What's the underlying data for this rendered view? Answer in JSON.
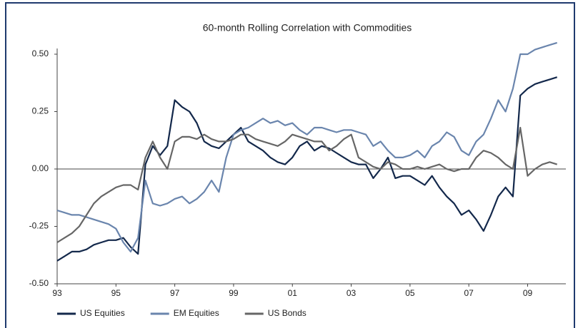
{
  "chart_data": {
    "type": "line",
    "title": "60-month Rolling Correlation with Commodities",
    "x": [
      1993,
      1993.25,
      1993.5,
      1993.75,
      1994,
      1994.25,
      1994.5,
      1994.75,
      1995,
      1995.25,
      1995.5,
      1995.75,
      1996,
      1996.25,
      1996.5,
      1996.75,
      1997,
      1997.25,
      1997.5,
      1997.75,
      1998,
      1998.25,
      1998.5,
      1998.75,
      1999,
      1999.25,
      1999.5,
      1999.75,
      2000,
      2000.25,
      2000.5,
      2000.75,
      2001,
      2001.25,
      2001.5,
      2001.75,
      2002,
      2002.25,
      2002.5,
      2002.75,
      2003,
      2003.25,
      2003.5,
      2003.75,
      2004,
      2004.25,
      2004.5,
      2004.75,
      2005,
      2005.25,
      2005.5,
      2005.75,
      2006,
      2006.25,
      2006.5,
      2006.75,
      2007,
      2007.25,
      2007.5,
      2007.75,
      2008,
      2008.25,
      2008.5,
      2008.75,
      2009,
      2009.25,
      2009.5,
      2009.75,
      2010
    ],
    "series": [
      {
        "name": "US Equities",
        "color": "#13284b",
        "values": [
          -0.4,
          -0.38,
          -0.36,
          -0.36,
          -0.35,
          -0.33,
          -0.32,
          -0.31,
          -0.31,
          -0.3,
          -0.34,
          -0.37,
          0.02,
          0.1,
          0.06,
          0.1,
          0.3,
          0.27,
          0.25,
          0.2,
          0.12,
          0.1,
          0.09,
          0.12,
          0.15,
          0.18,
          0.12,
          0.1,
          0.08,
          0.05,
          0.03,
          0.02,
          0.05,
          0.1,
          0.12,
          0.08,
          0.1,
          0.09,
          0.07,
          0.05,
          0.03,
          0.02,
          0.02,
          -0.04,
          0.0,
          0.05,
          -0.04,
          -0.03,
          -0.03,
          -0.05,
          -0.07,
          -0.03,
          -0.08,
          -0.12,
          -0.15,
          -0.2,
          -0.18,
          -0.22,
          -0.27,
          -0.2,
          -0.12,
          -0.08,
          -0.12,
          0.32,
          0.35,
          0.37,
          0.38,
          0.39,
          0.4
        ]
      },
      {
        "name": "EM Equities",
        "color": "#6a85ad",
        "values": [
          -0.18,
          -0.19,
          -0.2,
          -0.2,
          -0.21,
          -0.22,
          -0.23,
          -0.24,
          -0.26,
          -0.32,
          -0.36,
          -0.3,
          -0.05,
          -0.15,
          -0.16,
          -0.15,
          -0.13,
          -0.12,
          -0.15,
          -0.13,
          -0.1,
          -0.05,
          -0.1,
          0.05,
          0.15,
          0.17,
          0.18,
          0.2,
          0.22,
          0.2,
          0.21,
          0.19,
          0.2,
          0.17,
          0.15,
          0.18,
          0.18,
          0.17,
          0.16,
          0.17,
          0.17,
          0.16,
          0.15,
          0.1,
          0.12,
          0.08,
          0.05,
          0.05,
          0.06,
          0.08,
          0.05,
          0.1,
          0.12,
          0.16,
          0.14,
          0.08,
          0.06,
          0.12,
          0.15,
          0.22,
          0.3,
          0.25,
          0.35,
          0.5,
          0.5,
          0.52,
          0.53,
          0.54,
          0.55
        ]
      },
      {
        "name": "US Bonds",
        "color": "#666666",
        "values": [
          -0.32,
          -0.3,
          -0.28,
          -0.25,
          -0.2,
          -0.15,
          -0.12,
          -0.1,
          -0.08,
          -0.07,
          -0.07,
          -0.09,
          0.05,
          0.12,
          0.05,
          0.0,
          0.12,
          0.14,
          0.14,
          0.13,
          0.15,
          0.13,
          0.12,
          0.12,
          0.13,
          0.15,
          0.15,
          0.13,
          0.12,
          0.11,
          0.1,
          0.12,
          0.15,
          0.14,
          0.13,
          0.12,
          0.12,
          0.08,
          0.1,
          0.13,
          0.15,
          0.05,
          0.03,
          0.01,
          0.0,
          0.03,
          0.02,
          0.0,
          0.0,
          0.01,
          0.0,
          0.01,
          0.02,
          0.0,
          -0.01,
          0.0,
          0.0,
          0.05,
          0.08,
          0.07,
          0.05,
          0.02,
          0.0,
          0.18,
          -0.03,
          0.0,
          0.02,
          0.03,
          0.02
        ]
      }
    ],
    "xlim": [
      1993,
      2010.3
    ],
    "xticks": [
      {
        "value": 1993,
        "label": "93"
      },
      {
        "value": 1995,
        "label": "95"
      },
      {
        "value": 1997,
        "label": "97"
      },
      {
        "value": 1999,
        "label": "99"
      },
      {
        "value": 2001,
        "label": "01"
      },
      {
        "value": 2003,
        "label": "03"
      },
      {
        "value": 2005,
        "label": "05"
      },
      {
        "value": 2007,
        "label": "07"
      },
      {
        "value": 2009,
        "label": "09"
      }
    ],
    "ylim": [
      -0.5,
      0.5
    ],
    "yticks": [
      {
        "value": 0.5,
        "label": "0.50"
      },
      {
        "value": 0.25,
        "label": "0.25"
      },
      {
        "value": 0,
        "label": "0.00"
      },
      {
        "value": -0.25,
        "label": "-0.25"
      },
      {
        "value": -0.5,
        "label": "-0.50"
      }
    ],
    "zero_line": true,
    "legend": "bottom-left"
  }
}
